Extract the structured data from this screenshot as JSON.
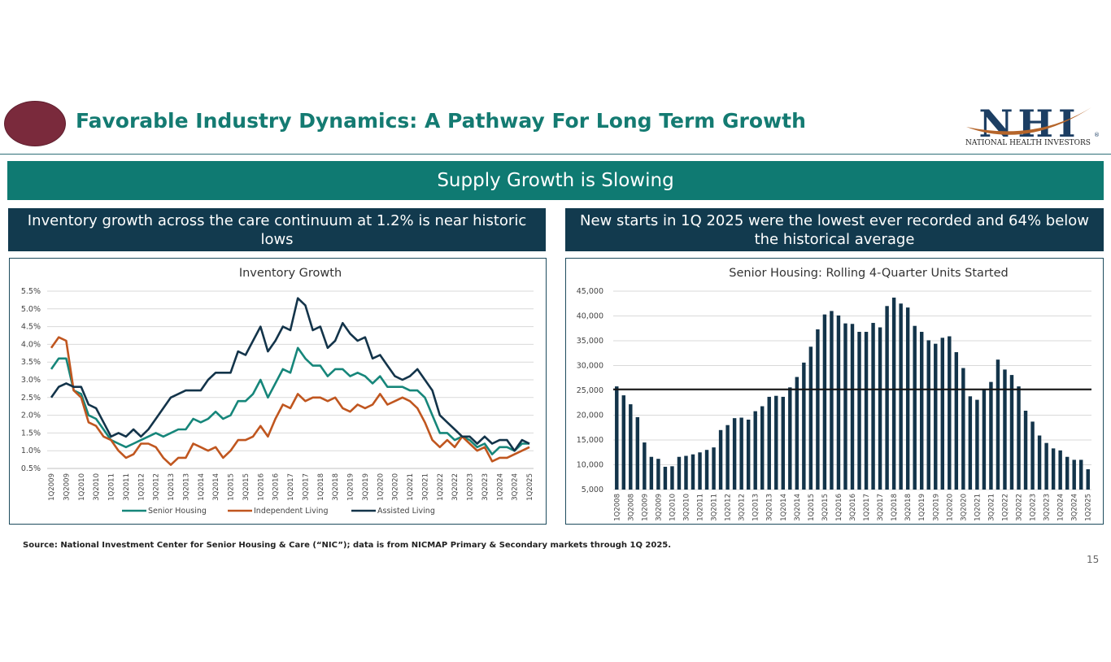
{
  "header": {
    "title": "Favorable Industry Dynamics: A Pathway For Long Term Growth",
    "logo_letters": "NHI",
    "logo_text": "NATIONAL HEALTH INVESTORS",
    "logo_registered": "®",
    "colors": {
      "title": "#147b72",
      "oval": "#7a2a3c",
      "logo_blue": "#1c3e63",
      "logo_swoosh": "#b5652a"
    }
  },
  "banner": {
    "text": "Supply Growth is Slowing",
    "color": "#0f7a72"
  },
  "subheaders": {
    "left": "Inventory growth across the care continuum at 1.2% is near historic lows",
    "right": "New starts in 1Q 2025 were the lowest ever recorded and 64% below the historical average",
    "color": "#123a4e"
  },
  "footer": {
    "source": "Source:  National Investment Center for Senior Housing & Care (“NIC”); data is from NICMAP Primary & Secondary markets through 1Q 2025.",
    "page_number": "15"
  },
  "chart_data": [
    {
      "type": "line",
      "title": "Inventory Growth",
      "ylim": [
        0.5,
        5.5
      ],
      "yticks": [
        "0.5%",
        "1.0%",
        "1.5%",
        "2.0%",
        "2.5%",
        "3.0%",
        "3.5%",
        "4.0%",
        "4.5%",
        "5.0%",
        "5.5%"
      ],
      "ytick_values": [
        0.5,
        1.0,
        1.5,
        2.0,
        2.5,
        3.0,
        3.5,
        4.0,
        4.5,
        5.0,
        5.5
      ],
      "x": [
        "1Q2009",
        "2Q2009",
        "3Q2009",
        "4Q2009",
        "1Q2010",
        "2Q2010",
        "3Q2010",
        "4Q2010",
        "1Q2011",
        "2Q2011",
        "3Q2011",
        "4Q2011",
        "1Q2012",
        "2Q2012",
        "3Q2012",
        "4Q2012",
        "1Q2013",
        "2Q2013",
        "3Q2013",
        "4Q2013",
        "1Q2014",
        "2Q2014",
        "3Q2014",
        "4Q2014",
        "1Q2015",
        "2Q2015",
        "3Q2015",
        "4Q2015",
        "1Q2016",
        "2Q2016",
        "3Q2016",
        "4Q2016",
        "1Q2017",
        "2Q2017",
        "3Q2017",
        "4Q2017",
        "1Q2018",
        "2Q2018",
        "3Q2018",
        "4Q2018",
        "1Q2019",
        "2Q2019",
        "3Q2019",
        "4Q2019",
        "1Q2020",
        "2Q2020",
        "3Q2020",
        "4Q2020",
        "1Q2021",
        "2Q2021",
        "3Q2021",
        "4Q2021",
        "1Q2022",
        "2Q2022",
        "3Q2022",
        "4Q2022",
        "1Q2023",
        "2Q2023",
        "3Q2023",
        "4Q2023",
        "1Q2024",
        "2Q2024",
        "3Q2024",
        "4Q2024",
        "1Q2025"
      ],
      "xtick_labels": [
        "1Q2009",
        "3Q2009",
        "1Q2010",
        "3Q2010",
        "1Q2011",
        "3Q2011",
        "1Q2012",
        "3Q2012",
        "1Q2013",
        "3Q2013",
        "1Q2014",
        "3Q2014",
        "1Q2015",
        "3Q2015",
        "1Q2016",
        "3Q2016",
        "1Q2017",
        "3Q2017",
        "1Q2018",
        "3Q2018",
        "1Q2019",
        "3Q2019",
        "1Q2020",
        "3Q2020",
        "1Q2021",
        "3Q2021",
        "1Q2022",
        "3Q2022",
        "1Q2023",
        "3Q2023",
        "1Q2024",
        "3Q2024",
        "1Q2025"
      ],
      "series": [
        {
          "name": "Senior Housing",
          "color": "#16867a",
          "values": [
            3.3,
            3.6,
            3.6,
            2.7,
            2.6,
            2.0,
            1.9,
            1.6,
            1.3,
            1.2,
            1.1,
            1.2,
            1.3,
            1.4,
            1.5,
            1.4,
            1.5,
            1.6,
            1.6,
            1.9,
            1.8,
            1.9,
            2.1,
            1.9,
            2.0,
            2.4,
            2.4,
            2.6,
            3.0,
            2.5,
            2.9,
            3.3,
            3.2,
            3.9,
            3.6,
            3.4,
            3.4,
            3.1,
            3.3,
            3.3,
            3.1,
            3.2,
            3.1,
            2.9,
            3.1,
            2.8,
            2.8,
            2.8,
            2.7,
            2.7,
            2.5,
            2.0,
            1.5,
            1.5,
            1.3,
            1.4,
            1.3,
            1.1,
            1.2,
            0.9,
            1.1,
            1.1,
            1.0,
            1.2,
            1.2
          ]
        },
        {
          "name": "Independent Living",
          "color": "#c0561f",
          "values": [
            3.9,
            4.2,
            4.1,
            2.7,
            2.5,
            1.8,
            1.7,
            1.4,
            1.3,
            1.0,
            0.8,
            0.9,
            1.2,
            1.2,
            1.1,
            0.8,
            0.6,
            0.8,
            0.8,
            1.2,
            1.1,
            1.0,
            1.1,
            0.8,
            1.0,
            1.3,
            1.3,
            1.4,
            1.7,
            1.4,
            1.9,
            2.3,
            2.2,
            2.6,
            2.4,
            2.5,
            2.5,
            2.4,
            2.5,
            2.2,
            2.1,
            2.3,
            2.2,
            2.3,
            2.6,
            2.3,
            2.4,
            2.5,
            2.4,
            2.2,
            1.8,
            1.3,
            1.1,
            1.3,
            1.1,
            1.4,
            1.2,
            1.0,
            1.1,
            0.7,
            0.8,
            0.8,
            0.9,
            1.0,
            1.1
          ]
        },
        {
          "name": "Assisted Living",
          "color": "#13344a",
          "values": [
            2.5,
            2.8,
            2.9,
            2.8,
            2.8,
            2.3,
            2.2,
            1.8,
            1.4,
            1.5,
            1.4,
            1.6,
            1.4,
            1.6,
            1.9,
            2.2,
            2.5,
            2.6,
            2.7,
            2.7,
            2.7,
            3.0,
            3.2,
            3.2,
            3.2,
            3.8,
            3.7,
            4.1,
            4.5,
            3.8,
            4.1,
            4.5,
            4.4,
            5.3,
            5.1,
            4.4,
            4.5,
            3.9,
            4.1,
            4.6,
            4.3,
            4.1,
            4.2,
            3.6,
            3.7,
            3.4,
            3.1,
            3.0,
            3.1,
            3.3,
            3.0,
            2.7,
            2.0,
            1.8,
            1.6,
            1.4,
            1.4,
            1.2,
            1.4,
            1.2,
            1.3,
            1.3,
            1.0,
            1.3,
            1.2
          ]
        }
      ],
      "legend": [
        "Senior Housing",
        "Independent Living",
        "Assisted Living"
      ]
    },
    {
      "type": "bar",
      "title": "Senior Housing: Rolling 4-Quarter Units Started",
      "color": "#13344a",
      "ylim": [
        5000,
        45000
      ],
      "yticks": [
        "5,000",
        "10,000",
        "15,000",
        "20,000",
        "25,000",
        "30,000",
        "35,000",
        "40,000",
        "45,000"
      ],
      "ytick_values": [
        5000,
        10000,
        15000,
        20000,
        25000,
        30000,
        35000,
        40000,
        45000
      ],
      "average_line": 25200,
      "categories": [
        "1Q2008",
        "2Q2008",
        "3Q2008",
        "4Q2008",
        "1Q2009",
        "2Q2009",
        "3Q2009",
        "4Q2009",
        "1Q2010",
        "2Q2010",
        "3Q2010",
        "4Q2010",
        "1Q2011",
        "2Q2011",
        "3Q2011",
        "4Q2011",
        "1Q2012",
        "2Q2012",
        "3Q2012",
        "4Q2012",
        "1Q2013",
        "2Q2013",
        "3Q2013",
        "4Q2013",
        "1Q2014",
        "2Q2014",
        "3Q2014",
        "4Q2014",
        "1Q2015",
        "2Q2015",
        "3Q2015",
        "4Q2015",
        "1Q2016",
        "2Q2016",
        "3Q2016",
        "4Q2016",
        "1Q2017",
        "2Q2017",
        "3Q2017",
        "4Q2017",
        "1Q2018",
        "2Q2018",
        "3Q2018",
        "4Q2018",
        "1Q2019",
        "2Q2019",
        "3Q2019",
        "4Q2019",
        "1Q2020",
        "2Q2020",
        "3Q2020",
        "4Q2020",
        "1Q2021",
        "2Q2021",
        "3Q2021",
        "4Q2021",
        "1Q2022",
        "2Q2022",
        "3Q2022",
        "4Q2022",
        "1Q2023",
        "2Q2023",
        "3Q2023",
        "4Q2023",
        "1Q2024",
        "2Q2024",
        "3Q2024",
        "4Q2024",
        "1Q2025"
      ],
      "xtick_labels": [
        "1Q2008",
        "3Q2008",
        "1Q2009",
        "3Q2009",
        "1Q2010",
        "3Q2010",
        "1Q2011",
        "3Q2011",
        "1Q2012",
        "3Q2012",
        "1Q2013",
        "3Q2013",
        "1Q2014",
        "3Q2014",
        "1Q2015",
        "3Q2015",
        "1Q2016",
        "3Q2016",
        "1Q2017",
        "3Q2017",
        "1Q2018",
        "3Q2018",
        "1Q2019",
        "3Q2019",
        "1Q2020",
        "3Q2020",
        "1Q2021",
        "3Q2021",
        "1Q2022",
        "3Q2022",
        "1Q2023",
        "3Q2023",
        "1Q2024",
        "3Q2024",
        "1Q2025"
      ],
      "values": [
        25800,
        24000,
        22200,
        19600,
        14500,
        11600,
        11200,
        9600,
        9700,
        11600,
        11800,
        12100,
        12500,
        13000,
        13500,
        17000,
        18000,
        19400,
        19500,
        19100,
        20800,
        21800,
        23700,
        23900,
        23700,
        25600,
        27700,
        30600,
        33800,
        37300,
        40300,
        41000,
        40100,
        38500,
        38400,
        36800,
        36800,
        38600,
        37700,
        42000,
        43700,
        42500,
        41700,
        38000,
        36800,
        35100,
        34400,
        35600,
        35900,
        32700,
        29500,
        23800,
        23100,
        25200,
        26700,
        31200,
        29200,
        28100,
        25800,
        20900,
        18700,
        15900,
        14400,
        13300,
        12900,
        11600,
        11000,
        11000,
        9100
      ]
    }
  ]
}
